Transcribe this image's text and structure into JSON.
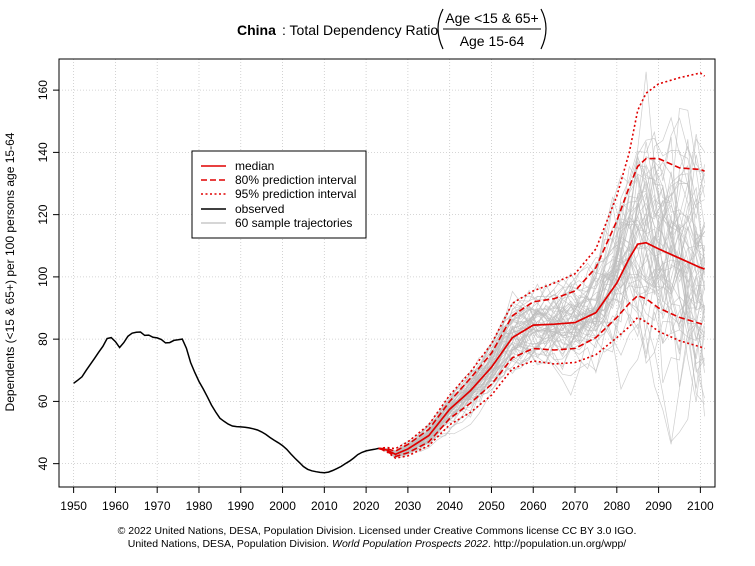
{
  "chart_data": {
    "type": "line",
    "title": {
      "country": "China",
      "text": ": Total Dependency Ratio",
      "numerator": "Age <15 & 65+",
      "denominator": "Age 15-64"
    },
    "ylabel": "Dependents (<15 & 65+) per 100 persons age 15-64",
    "xlabel": "",
    "xlim": [
      1946.5,
      2103.5
    ],
    "ylim": [
      32.5,
      170
    ],
    "x_ticks": [
      1950,
      1960,
      1970,
      1980,
      1990,
      2000,
      2010,
      2020,
      2030,
      2040,
      2050,
      2060,
      2070,
      2080,
      2090,
      2100
    ],
    "y_ticks": [
      40,
      60,
      80,
      100,
      120,
      140,
      160
    ],
    "grid": true,
    "legend": {
      "position": "upper-left",
      "entries": [
        "median",
        "80% prediction interval",
        "95% prediction interval",
        "observed",
        "60 sample trajectories"
      ]
    },
    "colors": {
      "observed": "#000000",
      "projection": "#e00000",
      "trajectories": "#bdbdbd",
      "grid": "#c8c8c8"
    },
    "observed": {
      "x": [
        1950,
        1951,
        1952,
        1953,
        1954,
        1955,
        1956,
        1957,
        1958,
        1959,
        1960,
        1961,
        1962,
        1963,
        1964,
        1965,
        1966,
        1967,
        1968,
        1969,
        1970,
        1971,
        1972,
        1973,
        1974,
        1975,
        1976,
        1977,
        1978,
        1979,
        1980,
        1981,
        1982,
        1983,
        1984,
        1985,
        1986,
        1987,
        1988,
        1989,
        1990,
        1991,
        1992,
        1993,
        1994,
        1995,
        1996,
        1997,
        1998,
        1999,
        2000,
        2001,
        2002,
        2003,
        2004,
        2005,
        2006,
        2007,
        2008,
        2009,
        2010,
        2011,
        2012,
        2013,
        2014,
        2015,
        2016,
        2017,
        2018,
        2019,
        2020,
        2021,
        2022,
        2023
      ],
      "y": [
        65.8,
        66.8,
        67.9,
        70.0,
        71.9,
        73.8,
        75.8,
        77.7,
        80.2,
        80.5,
        79.2,
        77.3,
        78.9,
        80.9,
        81.9,
        82.2,
        82.3,
        81.2,
        81.3,
        80.6,
        80.4,
        79.9,
        78.8,
        78.9,
        79.6,
        79.8,
        80.0,
        77.1,
        72.5,
        69.3,
        66.4,
        64.0,
        61.5,
        58.8,
        56.6,
        54.6,
        53.6,
        52.7,
        52.1,
        51.9,
        51.8,
        51.7,
        51.5,
        51.2,
        50.8,
        50.2,
        49.4,
        48.4,
        47.5,
        46.7,
        45.8,
        44.6,
        43.1,
        41.7,
        40.4,
        39.1,
        38.2,
        37.7,
        37.4,
        37.2,
        37.1,
        37.3,
        37.8,
        38.4,
        39.1,
        40.0,
        40.8,
        41.8,
        42.9,
        43.6,
        44.1,
        44.4,
        44.6,
        44.9
      ]
    },
    "projection_x": [
      2023,
      2025,
      2027,
      2030,
      2035,
      2040,
      2045,
      2050,
      2055,
      2060,
      2065,
      2070,
      2075,
      2080,
      2083,
      2085,
      2087,
      2090,
      2095,
      2100,
      2101
    ],
    "median": [
      44.9,
      44.4,
      43.0,
      44.7,
      49.0,
      57.5,
      63.5,
      71.0,
      80.5,
      84.5,
      84.8,
      85.3,
      88.5,
      98.0,
      106.0,
      110.5,
      111.0,
      109.0,
      106.0,
      103.0,
      102.5
    ],
    "pi80_upper": [
      44.9,
      44.8,
      44.0,
      46.2,
      51.0,
      60.0,
      67.5,
      75.5,
      87.5,
      92.0,
      93.0,
      95.5,
      103.0,
      118.0,
      129.0,
      135.5,
      138.0,
      138.0,
      135.0,
      134.5,
      134.0
    ],
    "pi80_lower": [
      44.9,
      44.0,
      42.3,
      43.5,
      47.0,
      54.5,
      59.5,
      65.5,
      74.0,
      77.0,
      76.5,
      77.0,
      80.5,
      87.0,
      91.5,
      94.0,
      93.0,
      90.0,
      87.0,
      85.0,
      84.5
    ],
    "pi95_upper": [
      44.9,
      45.2,
      44.8,
      47.0,
      52.5,
      62.0,
      69.5,
      78.5,
      91.5,
      95.5,
      98.0,
      101.0,
      109.0,
      126.0,
      140.0,
      153.5,
      159.0,
      162.0,
      164.0,
      165.5,
      164.5
    ],
    "pi95_lower": [
      44.9,
      43.8,
      41.8,
      42.5,
      45.8,
      52.5,
      56.5,
      62.0,
      70.5,
      73.0,
      72.0,
      72.5,
      75.0,
      80.5,
      84.0,
      87.0,
      85.5,
      82.5,
      79.5,
      77.5,
      77.0
    ],
    "sample_trajectories": {
      "count": 60,
      "x_start": 2023,
      "x_end": 2101
    },
    "footer": {
      "line1": "© 2022 United Nations, DESA, Population Division. Licensed under Creative Commons license CC BY 3.0 IGO.",
      "line2_pre": "United Nations, DESA, Population Division. ",
      "line2_italic": "World Population Prospects 2022",
      "line2_post": ". http://population.un.org/wpp/"
    }
  }
}
